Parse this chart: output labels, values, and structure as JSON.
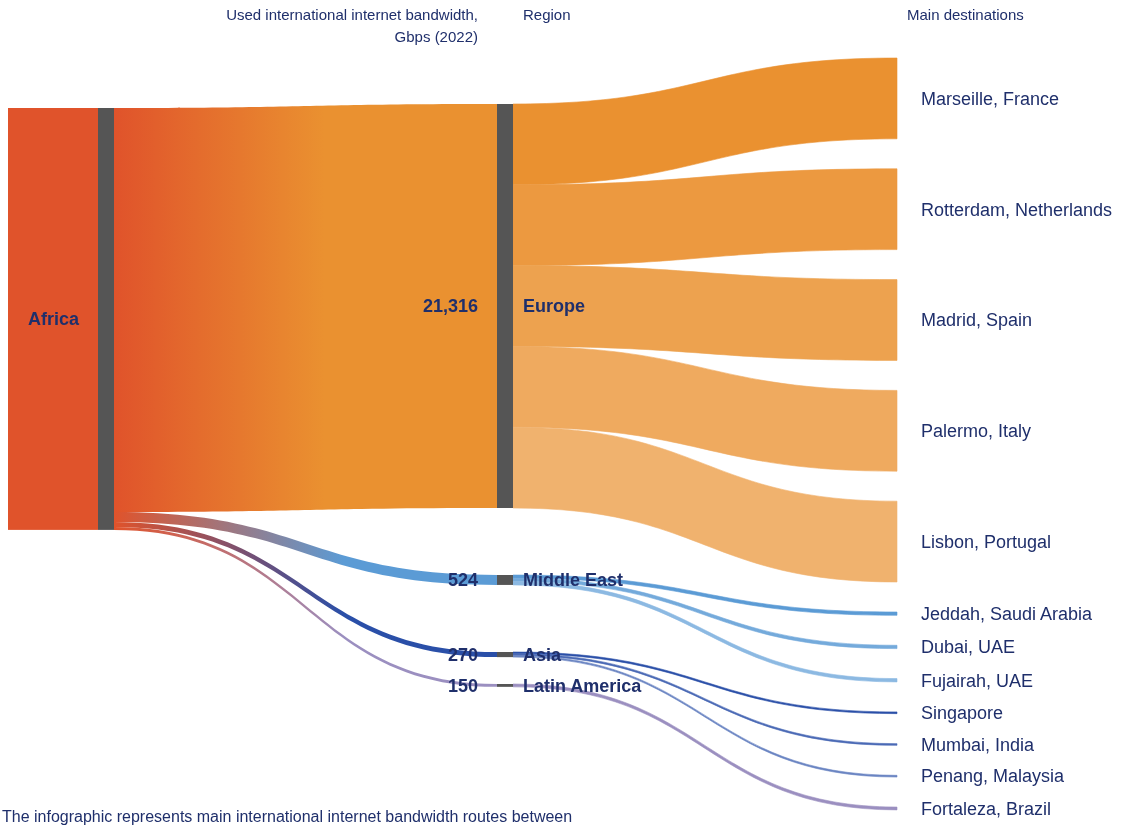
{
  "chart_data": {
    "type": "other",
    "annotations": [
      "Used international internet bandwidth, Gbps (2022)",
      "Region",
      "Main destinations",
      "Africa",
      "The infographic represents main international internet bandwidth routes between",
      {
        "text": "Marseille, France",
        "x": "Europe"
      },
      {
        "text": "Rotterdam, Netherlands",
        "x": "Europe"
      },
      {
        "text": "Madrid, Spain",
        "x": "Europe"
      },
      {
        "text": "Palermo, Italy",
        "x": "Europe"
      },
      {
        "text": "Lisbon, Portugal",
        "x": "Europe"
      },
      {
        "text": "Jeddah, Saudi Arabia",
        "x": "Middle East"
      },
      {
        "text": "Dubai, UAE",
        "x": "Middle East"
      },
      {
        "text": "Fujairah, UAE",
        "x": "Middle East"
      },
      {
        "text": "Singapore",
        "x": "Asia"
      },
      {
        "text": "Mumbai, India",
        "x": "Asia"
      },
      {
        "text": "Penang, Malaysia",
        "x": "Asia"
      },
      {
        "text": "Fortaleza, Brazil",
        "x": "Latin America"
      }
    ],
    "categories": [
      "Europe",
      "Middle East",
      "Asia",
      "Latin America"
    ],
    "values": [
      21316,
      524,
      270,
      150
    ],
    "value_labels": [
      "21,316",
      "524",
      "270",
      "150"
    ],
    "colors": [
      "#ea9130",
      "#5b9bd5",
      "#2a4fa8",
      "#9b8fc0"
    ]
  }
}
